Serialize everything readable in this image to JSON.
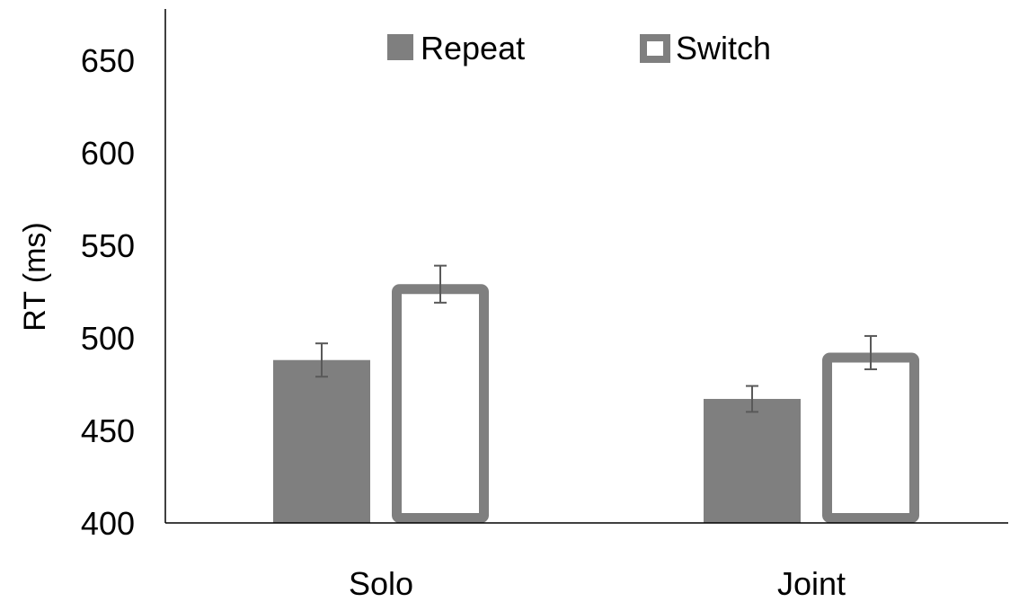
{
  "chart_data": {
    "type": "bar",
    "title": "",
    "xlabel": "",
    "ylabel": "RT (ms)",
    "ylim": [
      400,
      680
    ],
    "yticks": [
      400,
      450,
      500,
      550,
      600,
      650
    ],
    "grid": false,
    "legend_position": "top-center",
    "categories": [
      "Solo",
      "Joint"
    ],
    "series": [
      {
        "name": "Repeat",
        "values": [
          488,
          467
        ],
        "error": [
          9,
          7
        ],
        "style": "filled",
        "color": "#7f7f7f"
      },
      {
        "name": "Switch",
        "values": [
          529,
          492
        ],
        "error": [
          10,
          9
        ],
        "style": "outline",
        "color": "#7f7f7f"
      }
    ]
  }
}
